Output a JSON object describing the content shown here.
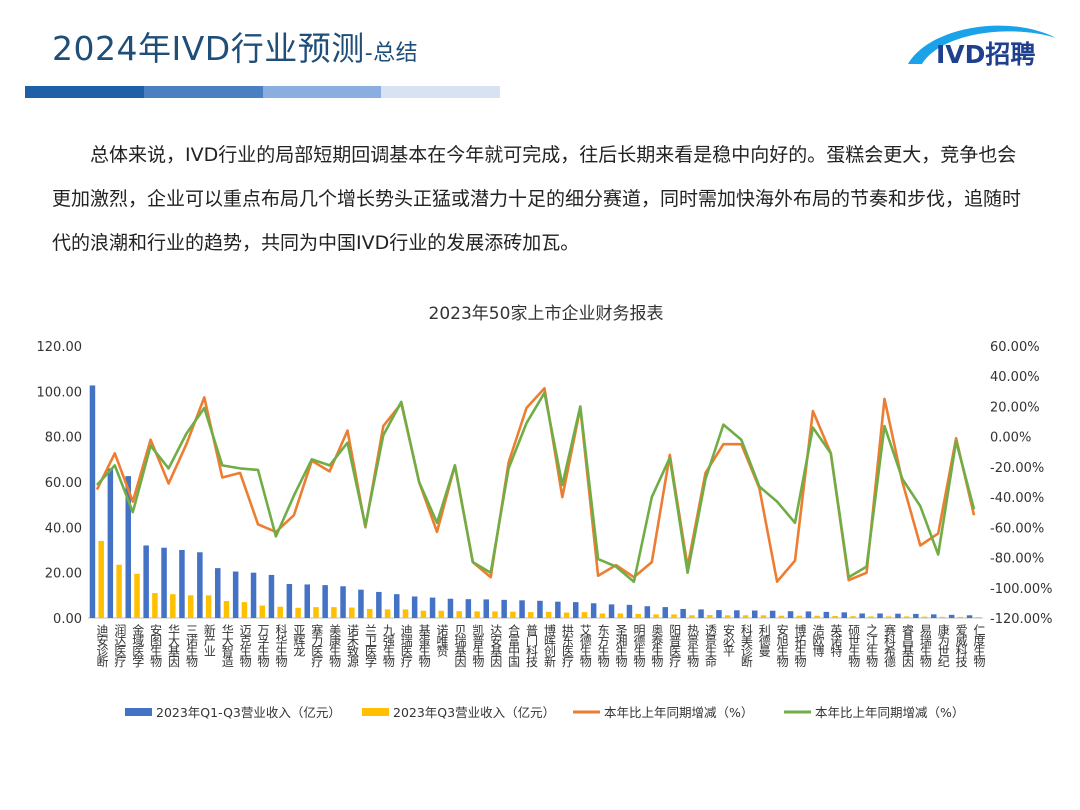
{
  "header": {
    "title": "2024年IVD行业预测",
    "subtitle": "-总结",
    "logo_text": "IVD招聘",
    "bar_colors": [
      "#1f5fa8",
      "#4a7fc1",
      "#8aaee0",
      "#d7e2f3"
    ]
  },
  "intro": {
    "text": "总体来说，IVD行业的局部短期回调基本在今年就可完成，往后长期来看是稳中向好的。蛋糕会更大，竞争也会更加激烈，企业可以重点布局几个增长势头正猛或潜力十足的细分赛道，同时需加快海外布局的节奏和步伐，追随时代的浪潮和行业的趋势，共同为中国IVD行业的发展添砖加瓦。"
  },
  "chart_data": {
    "type": "bar",
    "title": "2023年50家上市企业财务报表",
    "categories": [
      "迪安诊断",
      "润达医疗",
      "金域医学",
      "安图生物",
      "华大基因",
      "三诺生物",
      "新产业",
      "华大智造",
      "迈克生物",
      "万孚生物",
      "科华生物",
      "亚辉龙",
      "塞力医疗",
      "美康生物",
      "诺禾致源",
      "兰卫医学",
      "九强生物",
      "迪瑞医疗",
      "基蛋生物",
      "诺唯赞",
      "贝瑞基因",
      "凯普生物",
      "达安基因",
      "合富中国",
      "普门科技",
      "博晖创新",
      "拱东医疗",
      "艾德生物",
      "东方生物",
      "圣湘生物",
      "明德生物",
      "奥泰生物",
      "阳普医疗",
      "热景生物",
      "透景生命",
      "安必平",
      "科美诊断",
      "利德曼",
      "安旭生物",
      "博拓生物",
      "浩欧博",
      "英诺特",
      "硕世生物",
      "之江生物",
      "赛科希德",
      "睿昌基因",
      "易瑞生物",
      "康为世纪",
      "爱威科技",
      "仁度生物"
    ],
    "y_left": {
      "min": 0,
      "max": 120,
      "step": 20,
      "tick_labels": [
        "0.00",
        "20.00",
        "40.00",
        "60.00",
        "80.00",
        "100.00",
        "120.00"
      ]
    },
    "y_right": {
      "min": -120,
      "max": 60,
      "step": 20,
      "tick_labels": [
        "-120.00%",
        "-100.00%",
        "-80.00%",
        "-60.00%",
        "-40.00%",
        "-20.00%",
        "0.00%",
        "20.00%",
        "40.00%",
        "60.00%"
      ]
    },
    "legend_position": "bottom",
    "grid": false,
    "series": [
      {
        "name": "2023年Q1-Q3营业收入（亿元）",
        "kind": "bar",
        "axis": "left",
        "color": "#4472c4",
        "values": [
          102.6,
          66,
          62.6,
          32,
          31,
          30,
          29,
          22,
          20.5,
          20,
          19,
          15,
          14.8,
          14.5,
          14,
          12.5,
          11.5,
          10.5,
          9.5,
          9,
          8.5,
          8.3,
          8.2,
          8,
          7.8,
          7.6,
          7.2,
          7,
          6.5,
          6,
          5.8,
          5.2,
          4.8,
          4,
          3.8,
          3.5,
          3.4,
          3.3,
          3.2,
          3,
          2.9,
          2.7,
          2.5,
          2,
          2,
          1.9,
          1.8,
          1.6,
          1.4,
          1.2
        ]
      },
      {
        "name": "2023年Q3营业收入（亿元）",
        "kind": "bar",
        "axis": "left",
        "color": "#ffc000",
        "values": [
          34,
          23.5,
          19.5,
          11,
          10.5,
          10,
          10,
          7.5,
          7,
          5.5,
          5,
          4.5,
          4.8,
          4.8,
          4.6,
          4,
          3.8,
          3.8,
          3.2,
          3.2,
          3,
          2.9,
          2.9,
          2.8,
          2.6,
          2.7,
          2.4,
          2.6,
          2,
          2,
          1.8,
          1.6,
          1.6,
          1.2,
          1.3,
          1.2,
          1.2,
          1.2,
          1,
          1,
          1,
          0.9,
          0.8,
          0.7,
          0.7,
          0.7,
          0.6,
          0.5,
          0.5,
          0.4
        ]
      },
      {
        "name": "本年比上年同期增减（%）",
        "kind": "line",
        "axis": "right",
        "color": "#ed7d31",
        "values": [
          -35,
          -11,
          -43,
          -2,
          -31,
          -5,
          26,
          -27,
          -24,
          -58,
          -63,
          -52,
          -16,
          -23,
          4,
          -60,
          7,
          22,
          -30,
          -63,
          -19,
          -83,
          -93,
          -17,
          19,
          32,
          -40,
          19,
          -92,
          -85,
          -93,
          -83,
          -12,
          -86,
          -24,
          -5,
          -5,
          -34,
          -96,
          -82,
          17,
          -11,
          -95,
          -90,
          25,
          -30,
          -72,
          -64,
          -1,
          -52
        ]
      },
      {
        "name": "本年比上年同期增减（%）",
        "kind": "line",
        "axis": "right",
        "color": "#70ad47",
        "values": [
          -32,
          -19,
          -50,
          -6,
          -21,
          2,
          19,
          -19,
          -21,
          -22,
          -66,
          -39,
          -15,
          -19,
          -4,
          -59,
          1,
          23,
          -30,
          -57,
          -19,
          -83,
          -90,
          -21,
          9,
          29,
          -32,
          20,
          -81,
          -86,
          -96,
          -40,
          -14,
          -90,
          -28,
          8,
          -2,
          -33,
          -43,
          -57,
          6,
          -11,
          -93,
          -86,
          7,
          -28,
          -46,
          -78,
          -3,
          -48
        ]
      }
    ]
  }
}
